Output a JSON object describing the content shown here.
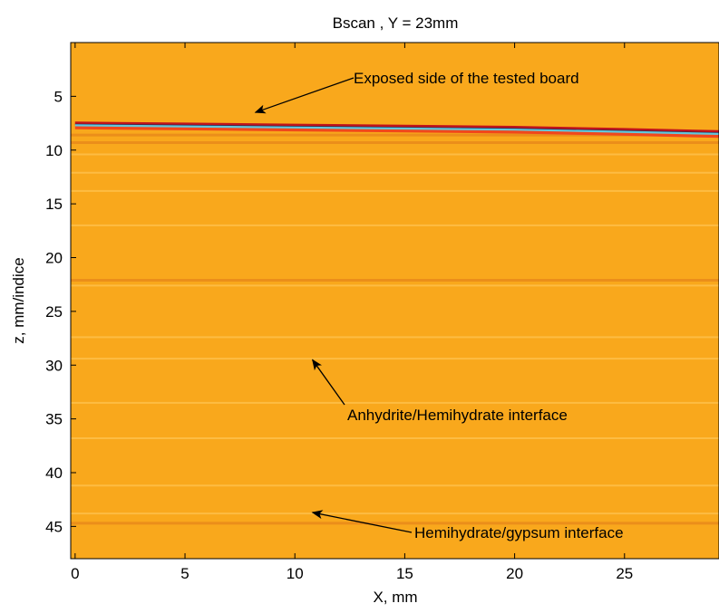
{
  "chart_data": {
    "type": "heatmap",
    "title": "Bscan , Y = 23mm",
    "xlabel": "X, mm",
    "ylabel": "z, mm/indice",
    "xlim": [
      -0.2,
      29.3
    ],
    "ylim": [
      48,
      0
    ],
    "xticks": [
      0,
      5,
      10,
      15,
      20,
      25
    ],
    "yticks": [
      5,
      10,
      15,
      20,
      25,
      30,
      35,
      40,
      45
    ],
    "y_reversed": true,
    "grid": false,
    "colors": {
      "background": "#F9A81C",
      "dark_band": "#E9891A",
      "light_band": "#FEC04A",
      "surface_red": "#C0141C",
      "surface_cyan": "#63C7DA",
      "surface_navy": "#1C2A5A",
      "surface_orange": "#F0481C"
    },
    "series": [
      {
        "name": "Exposed side of the tested board",
        "x": [
          0,
          5,
          10,
          15,
          20,
          25,
          29.3
        ],
        "z": [
          7.6,
          7.7,
          7.8,
          7.9,
          8.0,
          8.2,
          8.4
        ]
      }
    ],
    "bands": [
      {
        "z": 8.6,
        "kind": "dark"
      },
      {
        "z": 9.3,
        "kind": "dark"
      },
      {
        "z": 10.4,
        "kind": "light"
      },
      {
        "z": 12.1,
        "kind": "light"
      },
      {
        "z": 13.8,
        "kind": "light"
      },
      {
        "z": 17.0,
        "kind": "light"
      },
      {
        "z": 22.1,
        "kind": "dark"
      },
      {
        "z": 22.6,
        "kind": "light"
      },
      {
        "z": 27.4,
        "kind": "light"
      },
      {
        "z": 29.4,
        "kind": "light"
      },
      {
        "z": 33.5,
        "kind": "light"
      },
      {
        "z": 36.8,
        "kind": "light"
      },
      {
        "z": 41.2,
        "kind": "light"
      },
      {
        "z": 43.8,
        "kind": "light"
      },
      {
        "z": 44.7,
        "kind": "dark"
      }
    ],
    "annotations": [
      {
        "text": "Exposed side of the tested board",
        "x": 8.2,
        "z": 6.5
      },
      {
        "text": "Anhydrite/Hemihydrate interface",
        "x": 10.8,
        "z": 29.5
      },
      {
        "text": "Hemihydrate/gypsum interface",
        "x": 10.8,
        "z": 43.7
      }
    ]
  }
}
